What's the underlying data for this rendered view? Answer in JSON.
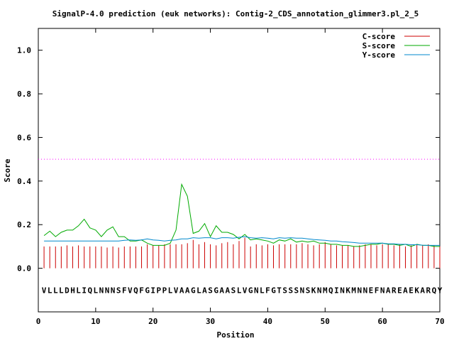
{
  "chart_data": {
    "type": "line",
    "title": "SignalP-4.0 prediction (euk networks): Contig-2_CDS_annotation_glimmer3.pl_2_5",
    "xlabel": "Position",
    "ylabel": "Score",
    "xlim": [
      0,
      70
    ],
    "ylim": [
      -0.2,
      1.1
    ],
    "x_ticks": [
      0,
      10,
      20,
      30,
      40,
      50,
      60,
      70
    ],
    "y_ticks": [
      0.0,
      0.2,
      0.4,
      0.6,
      0.8,
      1.0
    ],
    "x_tick_labels": [
      "0",
      "10",
      "20",
      "30",
      "40",
      "50",
      "60",
      "70"
    ],
    "y_tick_labels": [
      "0.0",
      "0.2",
      "0.4",
      "0.6",
      "0.8",
      "1.0"
    ],
    "threshold": 0.5,
    "threshold_color": "#ff00ff",
    "sequence": "VLLLDHLIQLNNNSFVQFGIPPLVAAGLASGAASLVGNLFGTSSSNSKNMQINKMNNEFNAREAEKARQY",
    "legend_position": "top-right",
    "series": [
      {
        "name": "C-score",
        "style": "impulse",
        "color": "#cc0000",
        "values": [
          0.1,
          0.1,
          0.1,
          0.1,
          0.105,
          0.1,
          0.105,
          0.1,
          0.1,
          0.1,
          0.1,
          0.095,
          0.1,
          0.095,
          0.1,
          0.1,
          0.1,
          0.1,
          0.11,
          0.105,
          0.105,
          0.11,
          0.11,
          0.11,
          0.11,
          0.115,
          0.13,
          0.11,
          0.12,
          0.11,
          0.105,
          0.115,
          0.12,
          0.11,
          0.125,
          0.14,
          0.1,
          0.11,
          0.105,
          0.11,
          0.105,
          0.11,
          0.11,
          0.11,
          0.11,
          0.115,
          0.11,
          0.105,
          0.11,
          0.12,
          0.11,
          0.105,
          0.105,
          0.105,
          0.1,
          0.105,
          0.11,
          0.11,
          0.105,
          0.11,
          0.11,
          0.105,
          0.11,
          0.1,
          0.105,
          0.11,
          0.105,
          0.11,
          0.105,
          0.1
        ]
      },
      {
        "name": "S-score",
        "style": "line",
        "color": "#00aa00",
        "values": [
          0.15,
          0.17,
          0.145,
          0.165,
          0.175,
          0.175,
          0.195,
          0.225,
          0.185,
          0.175,
          0.145,
          0.175,
          0.19,
          0.145,
          0.145,
          0.125,
          0.125,
          0.13,
          0.115,
          0.105,
          0.105,
          0.105,
          0.115,
          0.175,
          0.385,
          0.33,
          0.16,
          0.17,
          0.205,
          0.145,
          0.195,
          0.165,
          0.165,
          0.155,
          0.135,
          0.155,
          0.13,
          0.135,
          0.13,
          0.125,
          0.115,
          0.13,
          0.125,
          0.135,
          0.12,
          0.125,
          0.12,
          0.125,
          0.115,
          0.115,
          0.11,
          0.11,
          0.105,
          0.105,
          0.1,
          0.1,
          0.105,
          0.11,
          0.11,
          0.115,
          0.11,
          0.11,
          0.105,
          0.11,
          0.1,
          0.11,
          0.105,
          0.105,
          0.1,
          0.1
        ]
      },
      {
        "name": "Y-score",
        "style": "line",
        "color": "#0088cc",
        "values": [
          0.125,
          0.125,
          0.125,
          0.125,
          0.125,
          0.125,
          0.125,
          0.125,
          0.125,
          0.125,
          0.125,
          0.125,
          0.125,
          0.125,
          0.128,
          0.13,
          0.128,
          0.13,
          0.135,
          0.13,
          0.128,
          0.125,
          0.128,
          0.13,
          0.135,
          0.135,
          0.14,
          0.138,
          0.14,
          0.14,
          0.135,
          0.14,
          0.14,
          0.138,
          0.142,
          0.145,
          0.14,
          0.138,
          0.14,
          0.138,
          0.135,
          0.14,
          0.138,
          0.14,
          0.138,
          0.138,
          0.135,
          0.132,
          0.13,
          0.128,
          0.125,
          0.125,
          0.122,
          0.12,
          0.118,
          0.115,
          0.115,
          0.115,
          0.115,
          0.115,
          0.112,
          0.112,
          0.11,
          0.11,
          0.108,
          0.108,
          0.106,
          0.105,
          0.105,
          0.105
        ]
      }
    ]
  }
}
